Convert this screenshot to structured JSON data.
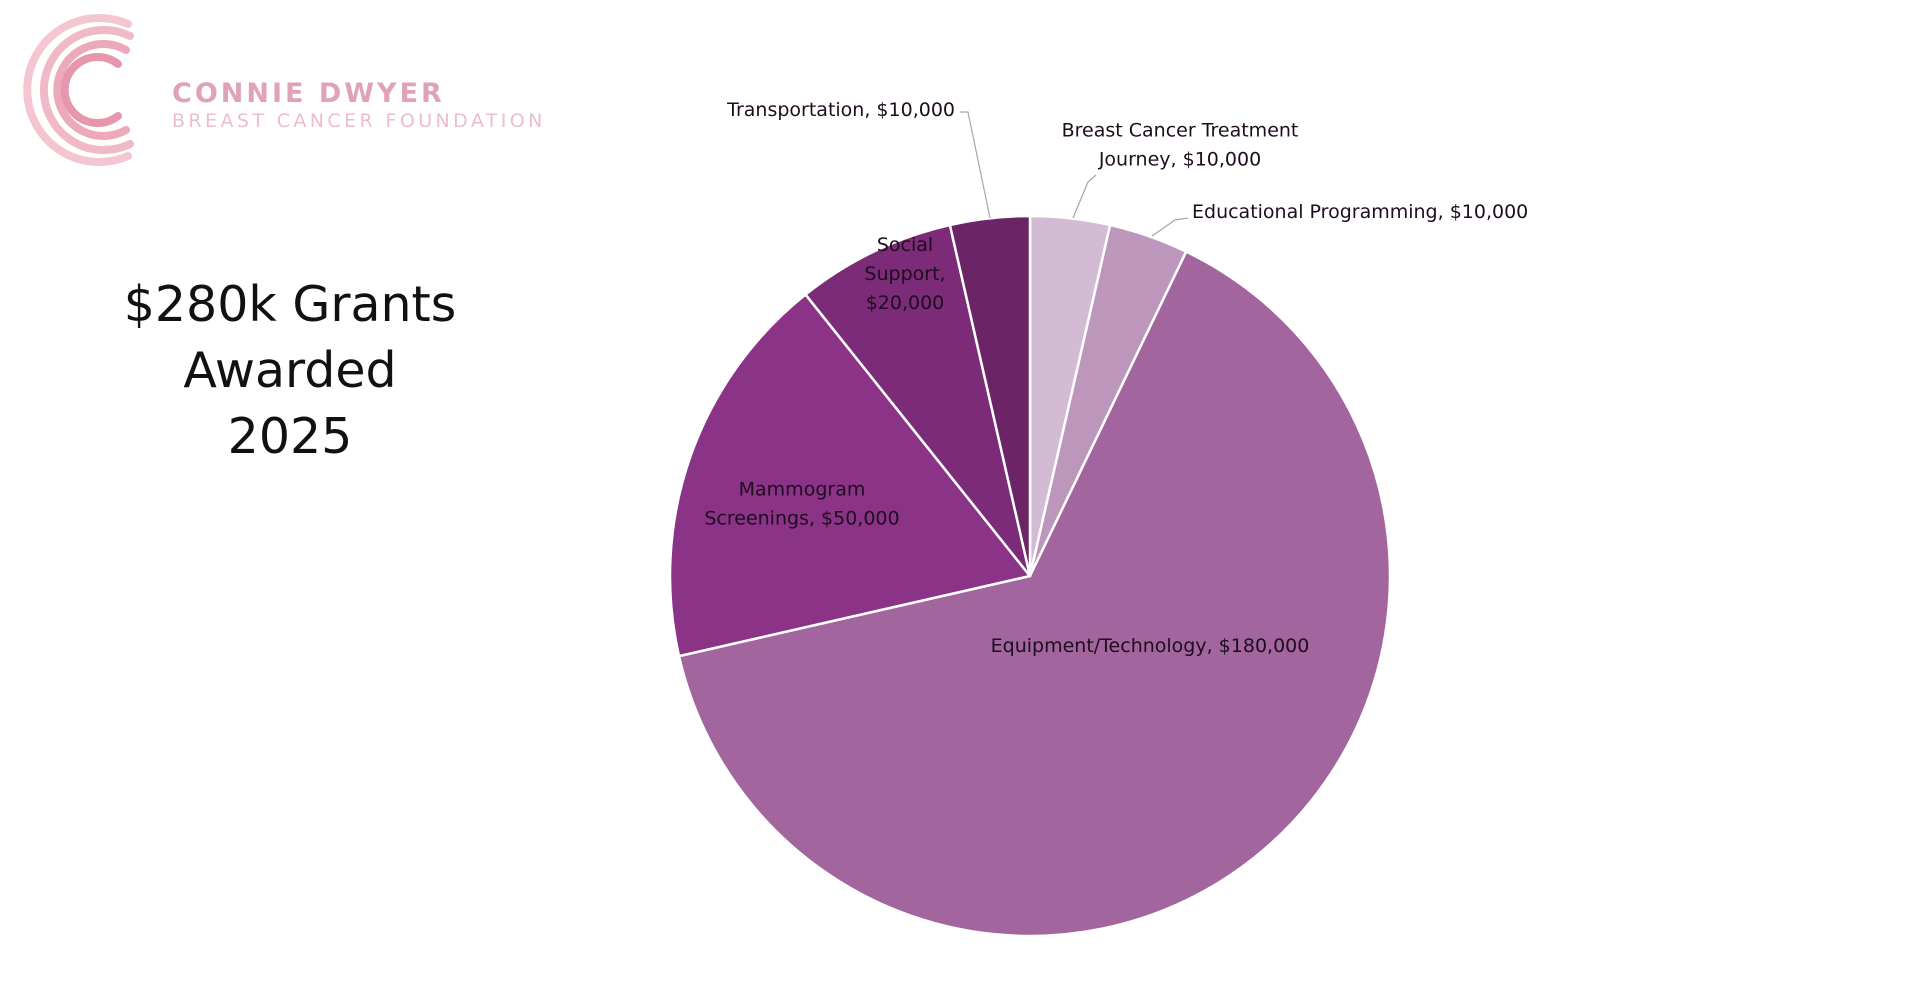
{
  "logo": {
    "name_line1": "CONNIE DWYER",
    "name_line2": "BREAST CANCER FOUNDATION",
    "colors": [
      "#f3c3cf",
      "#efb2c2",
      "#e797ad"
    ]
  },
  "title": {
    "line1": "$280k Grants Awarded",
    "line2": "2025"
  },
  "chart_data": {
    "type": "pie",
    "title": "$280k Grants Awarded 2025",
    "total": 280000,
    "start_angle": "12 o'clock",
    "direction": "clockwise",
    "slices": [
      {
        "label": "Breast Cancer Treatment Journey",
        "value": 10000,
        "label_lines": [
          "Breast Cancer Treatment",
          "Journey, $10,000"
        ],
        "color": "#d3bcd3",
        "label_outside": true
      },
      {
        "label": "Educational Programming",
        "value": 10000,
        "label_lines": [
          "Educational Programming, $10,000"
        ],
        "color": "#bc96bb",
        "label_outside": true
      },
      {
        "label": "Equipment/Technology",
        "value": 180000,
        "label_lines": [
          "Equipment/Technology, $180,000"
        ],
        "color": "#a2659e",
        "label_outside": false
      },
      {
        "label": "Mammogram Screenings",
        "value": 50000,
        "label_lines": [
          "Mammogram",
          "Screenings, $50,000"
        ],
        "color": "#8a3387",
        "label_outside": false
      },
      {
        "label": "Social Support",
        "value": 20000,
        "label_lines": [
          "Social",
          "Support,",
          "$20,000"
        ],
        "color": "#7b2b77",
        "label_outside": false
      },
      {
        "label": "Transportation",
        "value": 10000,
        "label_lines": [
          "Transportation, $10,000"
        ],
        "color": "#6b2567",
        "label_outside": true
      }
    ]
  }
}
